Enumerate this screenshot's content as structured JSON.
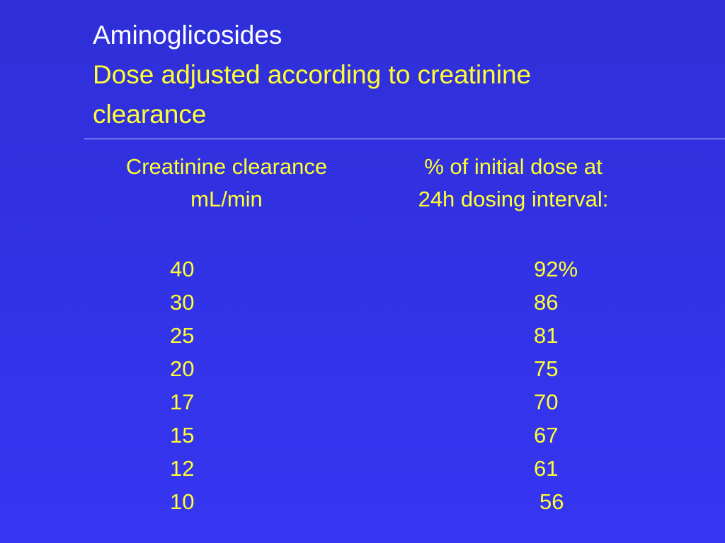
{
  "title": {
    "main": "Aminoglicosides",
    "line2": "Dose adjusted according to creatinine",
    "line3": "clearance"
  },
  "table": {
    "headers": {
      "left": [
        "Creatinine clearance",
        "mL/min"
      ],
      "right": [
        "% of initial dose at",
        "24h dosing interval:"
      ]
    },
    "rows": [
      {
        "clearance": "40",
        "dose": "92%"
      },
      {
        "clearance": "30",
        "dose": "86"
      },
      {
        "clearance": "25",
        "dose": "81"
      },
      {
        "clearance": "20",
        "dose": "75"
      },
      {
        "clearance": "17",
        "dose": "70"
      },
      {
        "clearance": "15",
        "dose": "67"
      },
      {
        "clearance": "12",
        "dose": "61"
      },
      {
        "clearance": "10",
        "dose": "56"
      }
    ]
  },
  "colors": {
    "background": "#3232e6",
    "title": "#ffffff",
    "text": "#ffff33",
    "rule": "#d0d0f8"
  }
}
